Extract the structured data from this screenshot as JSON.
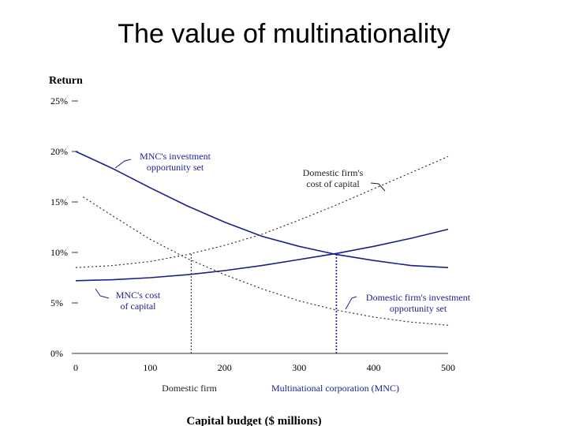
{
  "slide": {
    "title": "The value of multinationality"
  },
  "chart_data": {
    "type": "line",
    "title": "The value of multinationality",
    "xlabel": "Capital budget ($ millions)",
    "ylabel": "Return",
    "xlim": [
      0,
      500
    ],
    "ylim": [
      0,
      25
    ],
    "x_ticks": [
      0,
      100,
      200,
      300,
      400,
      500
    ],
    "x_tick_labels": [
      "0",
      "100",
      "200",
      "300",
      "400",
      "500"
    ],
    "y_ticks": [
      0,
      5,
      10,
      15,
      20,
      25
    ],
    "y_tick_labels": [
      "0%",
      "5%",
      "10%",
      "15%",
      "20%",
      "25%"
    ],
    "series": [
      {
        "name": "MNC's investment opportunity set",
        "style": "solid",
        "color": "#1a1f8c",
        "x": [
          0,
          50,
          100,
          150,
          200,
          250,
          300,
          350,
          400,
          450,
          500
        ],
        "y": [
          20.0,
          18.3,
          16.4,
          14.6,
          13.0,
          11.6,
          10.6,
          9.8,
          9.2,
          8.7,
          8.5
        ]
      },
      {
        "name": "MNC's cost of capital",
        "style": "solid",
        "color": "#1a1f8c",
        "x": [
          0,
          50,
          100,
          150,
          200,
          250,
          300,
          350,
          400,
          450,
          500
        ],
        "y": [
          7.2,
          7.3,
          7.5,
          7.8,
          8.2,
          8.7,
          9.3,
          9.9,
          10.6,
          11.4,
          12.3
        ]
      },
      {
        "name": "Domestic firm's investment opportunity set",
        "style": "dotted",
        "color": "#222222",
        "x": [
          10,
          50,
          100,
          150,
          200,
          250,
          300,
          350,
          400,
          450,
          500
        ],
        "y": [
          15.5,
          13.6,
          11.3,
          9.4,
          7.8,
          6.4,
          5.2,
          4.3,
          3.6,
          3.1,
          2.8
        ]
      },
      {
        "name": "Domestic firm's cost of capital",
        "style": "dotted",
        "color": "#222222",
        "x": [
          0,
          50,
          100,
          150,
          200,
          250,
          300,
          350,
          400,
          450,
          500
        ],
        "y": [
          8.5,
          8.7,
          9.1,
          9.8,
          10.7,
          11.8,
          13.2,
          14.7,
          16.3,
          17.9,
          19.5
        ]
      }
    ],
    "annotations": [
      {
        "id": "mnc-ios",
        "lines": [
          "MNC's investment",
          "opportunity set"
        ],
        "color": "#1a1f8c"
      },
      {
        "id": "dom-coc",
        "lines": [
          "Domestic firm's",
          "cost of capital"
        ],
        "color": "#222222"
      },
      {
        "id": "mnc-coc",
        "lines": [
          "MNC's cost",
          "of capital"
        ],
        "color": "#1a1f8c"
      },
      {
        "id": "dom-ios",
        "lines": [
          "Domestic firm's investment",
          "opportunity set"
        ],
        "color": "#1a1f8c"
      }
    ],
    "vertical_markers": [
      {
        "x": 155,
        "label": "Domestic firm",
        "color": "#222222"
      },
      {
        "x": 350,
        "label": "Multinational corporation (MNC)",
        "color": "#1a1f8c"
      }
    ]
  }
}
